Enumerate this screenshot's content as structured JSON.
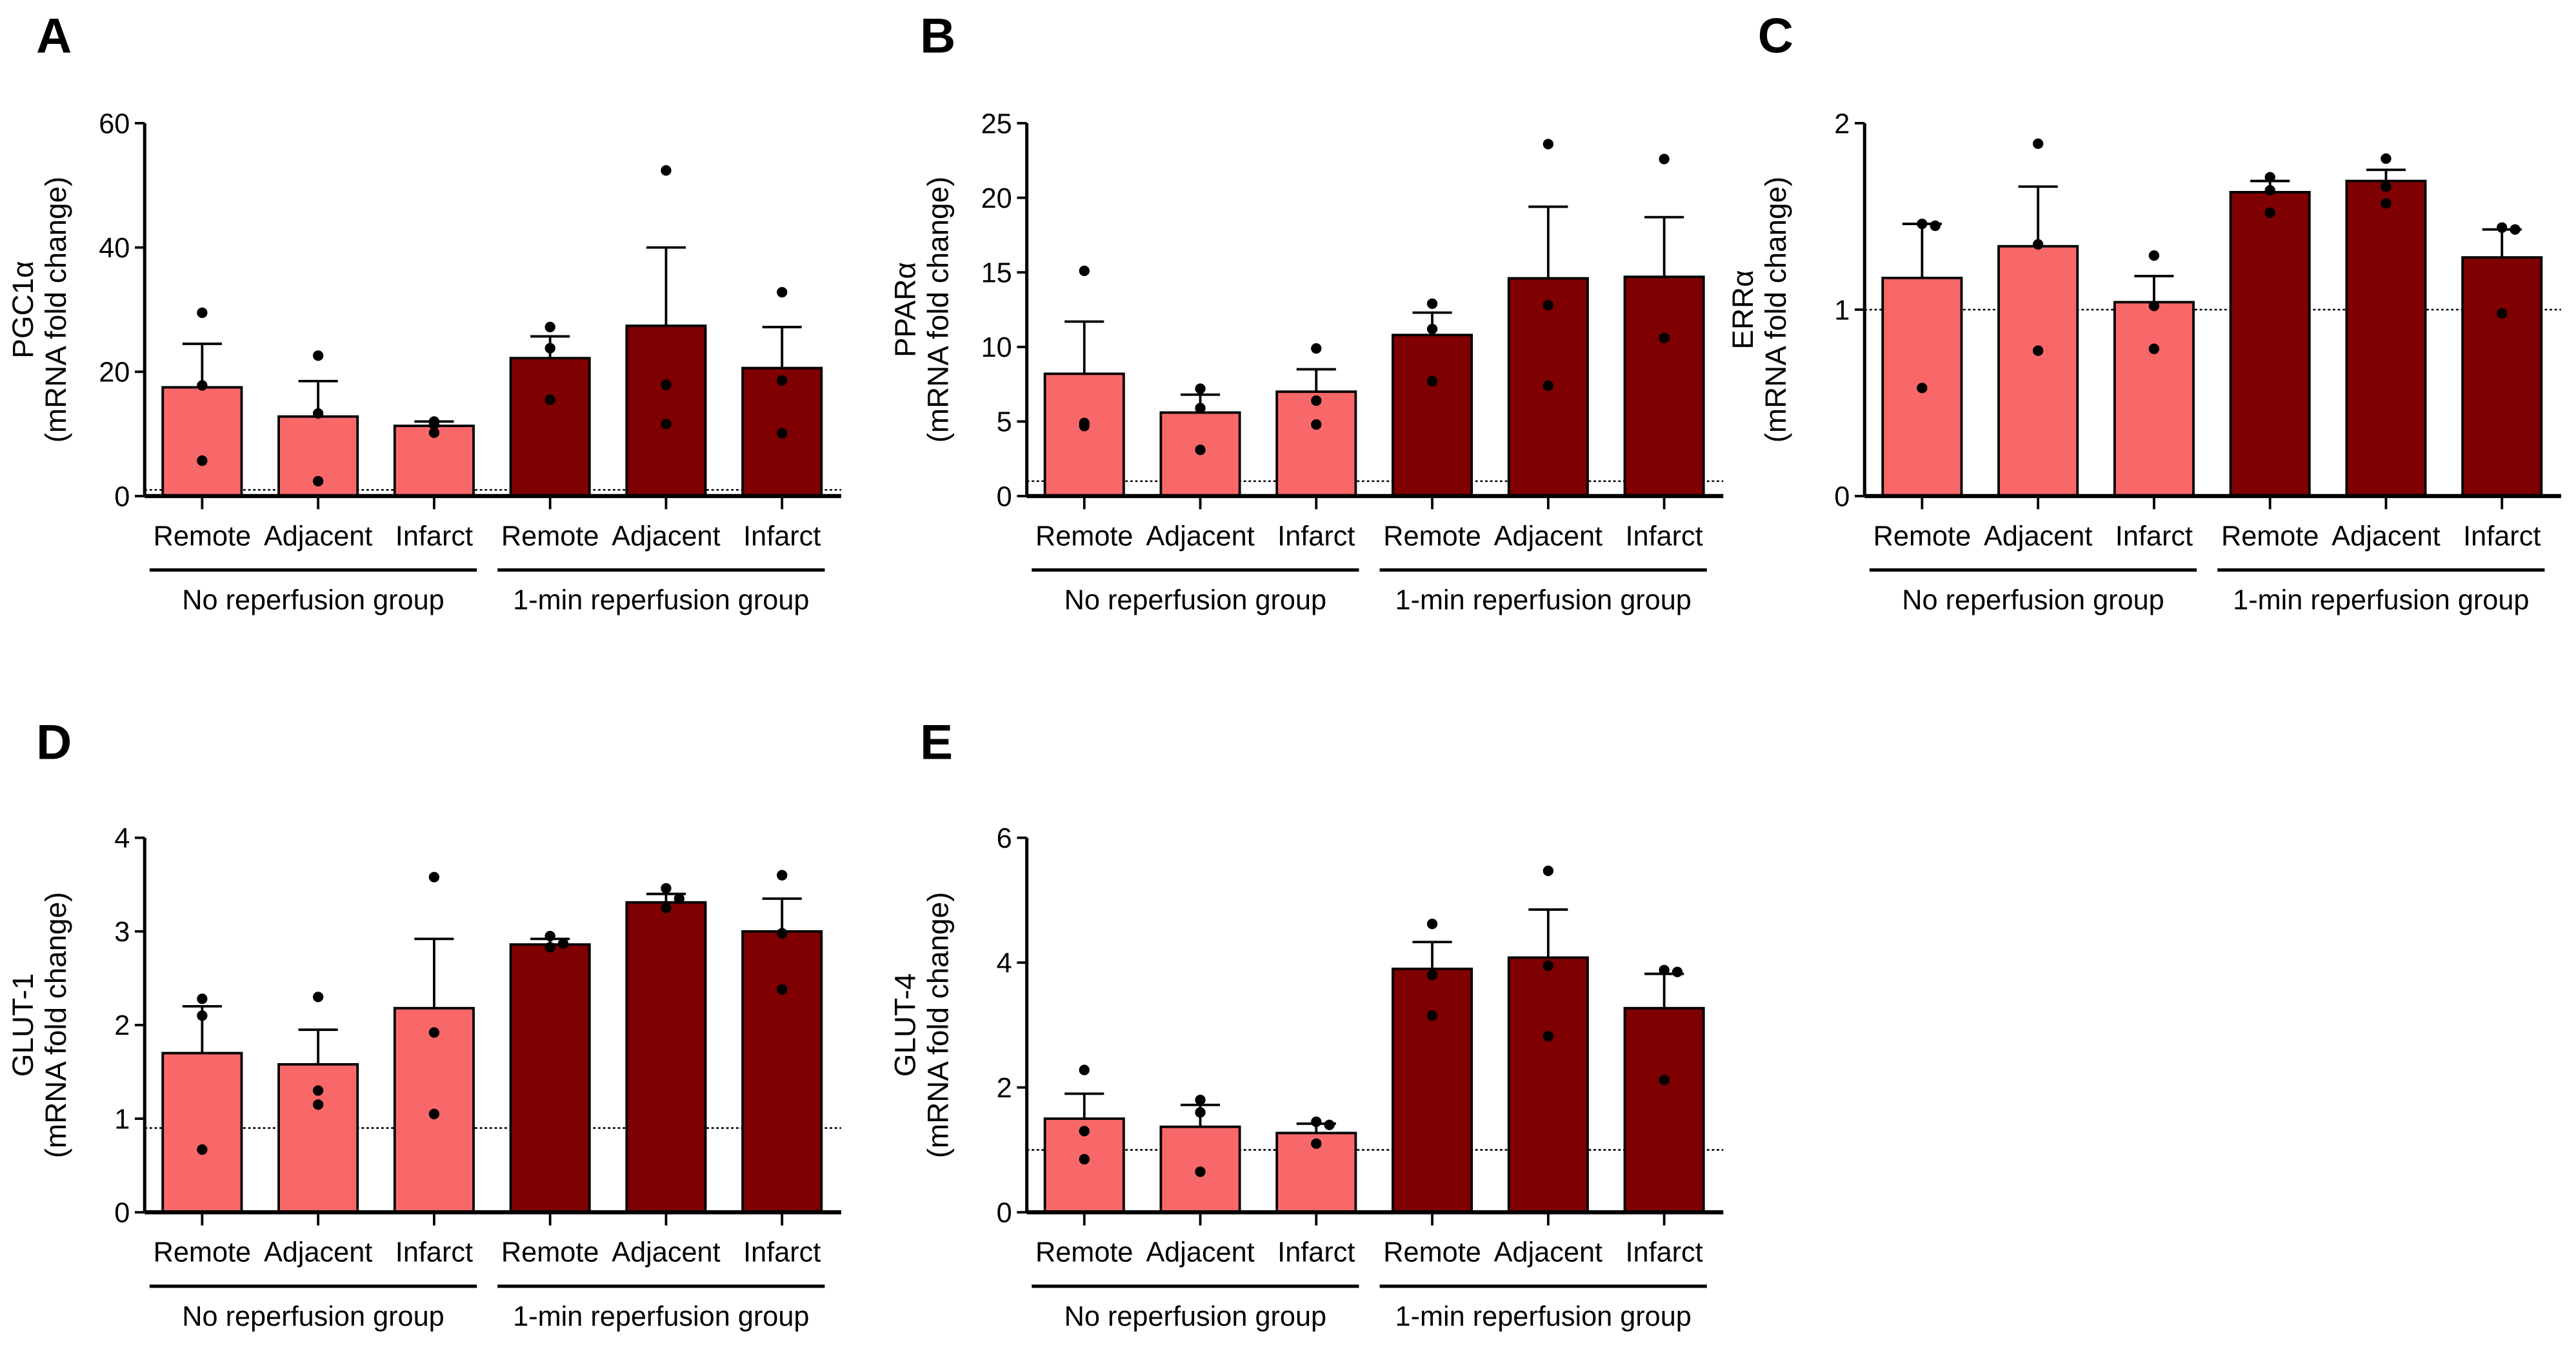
{
  "colors": {
    "no_reperfusion": "#F96869",
    "reperfusion": "#7F0000"
  },
  "categories": [
    "Remote",
    "Adjacent",
    "Infarct",
    "Remote",
    "Adjacent",
    "Infarct"
  ],
  "groups": [
    "No reperfusion group",
    "1-min reperfusion group"
  ],
  "chart_data": [
    {
      "type": "bar",
      "panel": "A",
      "ylabel": "PGC1α",
      "ylabel2": "(mRNA fold change)",
      "ylim": [
        0,
        60
      ],
      "yticks": [
        0,
        20,
        40,
        60
      ],
      "reference_line": 1,
      "means": [
        17.5,
        12.8,
        11.3,
        22.2,
        27.4,
        20.6
      ],
      "sem_top": [
        24.5,
        18.5,
        12,
        25.7,
        40,
        27.2
      ],
      "points": [
        [
          29.5,
          17.8,
          5.7
        ],
        [
          22.6,
          13.3,
          2.4
        ],
        [
          12,
          10.2,
          11.5
        ],
        [
          27.2,
          23.8,
          15.5
        ],
        [
          52.4,
          17.9,
          11.6
        ],
        [
          32.8,
          18.6,
          10.1
        ]
      ]
    },
    {
      "type": "bar",
      "panel": "B",
      "ylabel": "PPARα",
      "ylabel2": "(mRNA fold change)",
      "ylim": [
        0,
        25
      ],
      "yticks": [
        0,
        5,
        10,
        15,
        20,
        25
      ],
      "reference_line": 1,
      "means": [
        8.2,
        5.6,
        7.0,
        10.8,
        14.6,
        14.7
      ],
      "sem_top": [
        11.7,
        6.8,
        8.5,
        12.3,
        19.4,
        18.7
      ],
      "points": [
        [
          15.1,
          4.9,
          4.7
        ],
        [
          7.2,
          5.9,
          3.1
        ],
        [
          9.9,
          6.4,
          4.8
        ],
        [
          12.9,
          11.2,
          7.7
        ],
        [
          23.6,
          12.8,
          7.4
        ],
        [
          22.6,
          10.6,
          10.6
        ]
      ]
    },
    {
      "type": "bar",
      "panel": "C",
      "ylabel": "ERRα",
      "ylabel2": "(mRNA fold change)",
      "ylim": [
        0,
        2
      ],
      "yticks": [
        0,
        1,
        2
      ],
      "reference_line": 1,
      "means": [
        1.17,
        1.34,
        1.04,
        1.63,
        1.69,
        1.28
      ],
      "sem_top": [
        1.46,
        1.66,
        1.18,
        1.69,
        1.75,
        1.43
      ],
      "points": [
        [
          1.46,
          1.45,
          0.58
        ],
        [
          1.89,
          1.35,
          0.78
        ],
        [
          1.29,
          1.02,
          0.79
        ],
        [
          1.71,
          1.64,
          1.52
        ],
        [
          1.81,
          1.66,
          1.57
        ],
        [
          1.44,
          1.43,
          0.98
        ]
      ]
    },
    {
      "type": "bar",
      "panel": "D",
      "ylabel": "GLUT-1",
      "ylabel2": "(mRNA fold change)",
      "ylim": [
        0,
        4
      ],
      "yticks": [
        0,
        1,
        2,
        3,
        4
      ],
      "reference_line": 0.9,
      "means": [
        1.7,
        1.58,
        2.18,
        2.86,
        3.31,
        3.0
      ],
      "sem_top": [
        2.2,
        1.95,
        2.92,
        2.92,
        3.4,
        3.35
      ],
      "points": [
        [
          2.28,
          2.1,
          0.67
        ],
        [
          2.3,
          1.3,
          1.15
        ],
        [
          3.58,
          1.92,
          1.05
        ],
        [
          2.95,
          2.87,
          2.83
        ],
        [
          3.46,
          3.35,
          3.25
        ],
        [
          3.6,
          2.98,
          2.38
        ]
      ]
    },
    {
      "type": "bar",
      "panel": "E",
      "ylabel": "GLUT-4",
      "ylabel2": "(mRNA fold change)",
      "ylim": [
        0,
        6
      ],
      "yticks": [
        0,
        2,
        4,
        6
      ],
      "reference_line": 1,
      "means": [
        1.5,
        1.37,
        1.27,
        3.9,
        4.08,
        3.27
      ],
      "sem_top": [
        1.9,
        1.72,
        1.42,
        4.33,
        4.85,
        3.82
      ],
      "points": [
        [
          2.28,
          1.3,
          0.85
        ],
        [
          1.8,
          1.6,
          0.65
        ],
        [
          1.45,
          1.4,
          1.1
        ],
        [
          4.62,
          3.8,
          3.15
        ],
        [
          5.47,
          3.95,
          2.82
        ],
        [
          3.88,
          3.85,
          2.12
        ]
      ]
    }
  ]
}
